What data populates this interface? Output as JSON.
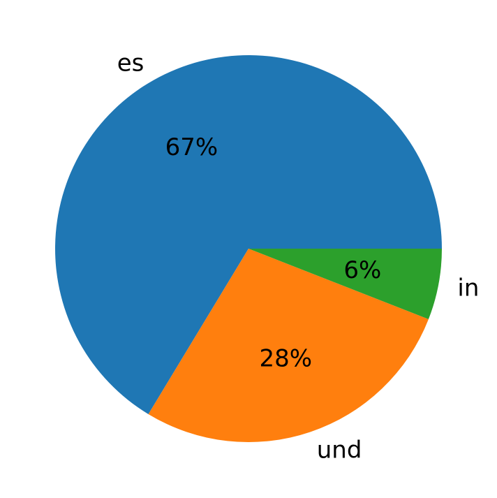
{
  "chart_data": {
    "type": "pie",
    "categories": [
      "es",
      "und",
      "in"
    ],
    "values": [
      67,
      28,
      6
    ],
    "percent_labels": [
      "67%",
      "28%",
      "6%"
    ],
    "colors": [
      "#1f77b4",
      "#ff7f0e",
      "#2ca02c"
    ],
    "start_angle_deg": 0,
    "direction": "counterclockwise",
    "title": "",
    "legend": "none"
  }
}
